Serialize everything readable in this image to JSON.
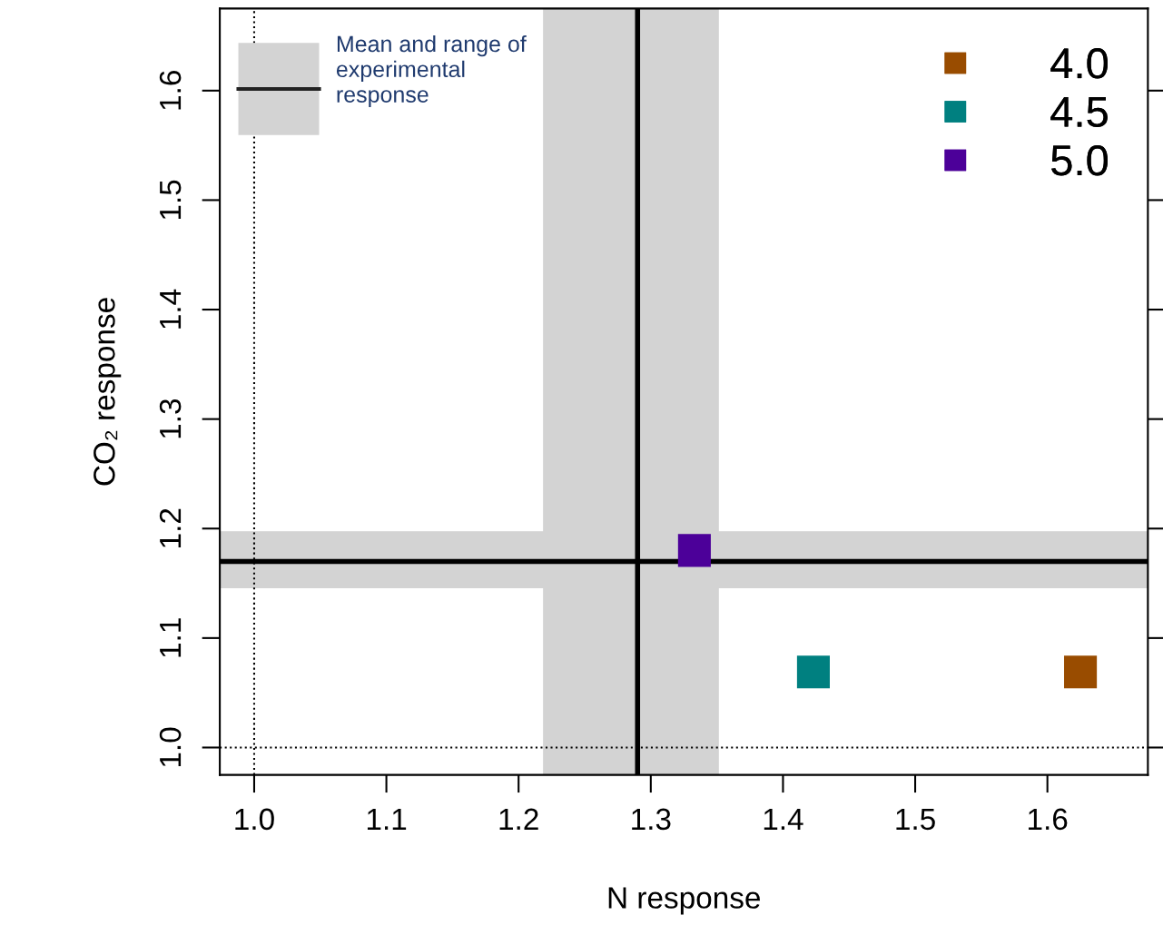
{
  "chart_data": {
    "type": "scatter",
    "xlabel": "N response",
    "ylabel": "CO₂ response",
    "series": [
      {
        "name": "4.0",
        "color": "#994c00",
        "x": [
          1.625
        ],
        "values": [
          1.069
        ]
      },
      {
        "name": "4.5",
        "color": "#008080",
        "x": [
          1.423
        ],
        "values": [
          1.069
        ]
      },
      {
        "name": "5.0",
        "color": "#4c0099",
        "x": [
          1.333
        ],
        "values": [
          1.18
        ]
      }
    ],
    "marker": "square",
    "legend": "top right",
    "bands": [
      {
        "axis": "x",
        "from": 1.219,
        "to": 1.351,
        "color": "#d3d3d3",
        "label": "Mean and range of experimental response"
      },
      {
        "axis": "y",
        "from": 1.146,
        "to": 1.197,
        "color": "#d3d3d3"
      }
    ],
    "ref_lines": [
      {
        "axis": "x",
        "value": 1.29,
        "color": "#000000",
        "line_style": "solid"
      },
      {
        "axis": "y",
        "value": 1.17,
        "color": "#000000",
        "line_style": "solid"
      },
      {
        "axis": "x",
        "value": 1.0,
        "color": "#000000",
        "line_style": "dotted"
      },
      {
        "axis": "y",
        "value": 1.0,
        "color": "#000000",
        "line_style": "dotted"
      }
    ],
    "xlim": [
      0.974,
      1.676
    ],
    "ylim": [
      0.975,
      1.675
    ],
    "xticks": [
      {
        "value": 1.0,
        "label": "1.0"
      },
      1.1,
      1.2,
      1.3,
      1.4,
      1.5,
      1.6
    ],
    "yticks": [
      {
        "value": 1.0,
        "label": "1.0"
      },
      1.1,
      1.2,
      1.3,
      1.4,
      1.5,
      1.6
    ],
    "grid": false
  }
}
